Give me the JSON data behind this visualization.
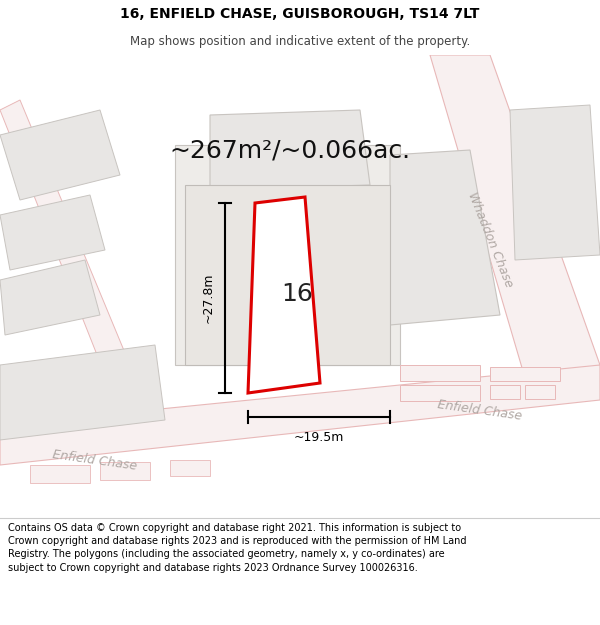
{
  "title_line1": "16, ENFIELD CHASE, GUISBOROUGH, TS14 7LT",
  "title_line2": "Map shows position and indicative extent of the property.",
  "area_text": "~267m²/~0.066ac.",
  "number_label": "16",
  "dim_vertical": "~27.8m",
  "dim_horizontal": "~19.5m",
  "road_label_whaddon": "Whaddon Chase",
  "road_label_enfield_r": "Enfield Chase",
  "road_label_enfield_l": "Enfield Chase",
  "footer_text": "Contains OS data © Crown copyright and database right 2021. This information is subject to Crown copyright and database rights 2023 and is reproduced with the permission of HM Land Registry. The polygons (including the associated geometry, namely x, y co-ordinates) are subject to Crown copyright and database rights 2023 Ordnance Survey 100026316.",
  "map_bg": "#f5f3f1",
  "road_fill": "#f8f0f0",
  "road_edge": "#e8b8b8",
  "block_fill": "#e8e6e4",
  "block_edge": "#c8c4c0",
  "plot_stroke": "#dd0000",
  "plot_fill": "#ffffff",
  "road_label_color": "#b0a8a4",
  "title_fontsize": 10,
  "subtitle_fontsize": 8.5,
  "area_fontsize": 18,
  "number_fontsize": 18,
  "dim_fontsize": 9,
  "road_fontsize": 9,
  "footer_fontsize": 7
}
